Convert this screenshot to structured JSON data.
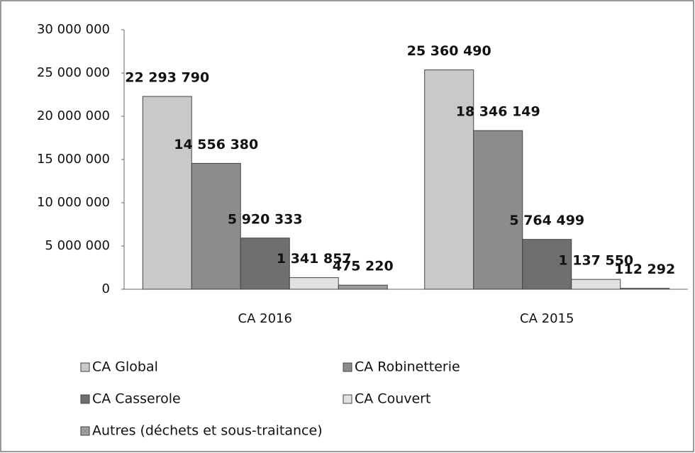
{
  "chart_data": {
    "type": "bar",
    "categories": [
      "CA 2016",
      "CA 2015"
    ],
    "series": [
      {
        "name": "CA Global",
        "color": "#c9c9c9",
        "values": [
          22293790,
          25360490
        ],
        "value_labels": [
          "22 293 790",
          "25 360 490"
        ]
      },
      {
        "name": "CA Robinetterie",
        "color": "#8c8c8c",
        "values": [
          14556380,
          18346149
        ],
        "value_labels": [
          "14 556 380",
          "18 346 149"
        ]
      },
      {
        "name": "CA Casserole",
        "color": "#6f6f6f",
        "values": [
          5920333,
          5764499
        ],
        "value_labels": [
          "5 920 333",
          "5 764 499"
        ]
      },
      {
        "name": "CA Couvert",
        "color": "#e2e2e2",
        "values": [
          1341857,
          1137550
        ],
        "value_labels": [
          "1 341 857",
          "1 137 550"
        ]
      },
      {
        "name": "Autres (déchets et sous-traitance)",
        "color": "#9c9c9c",
        "values": [
          475220,
          112292
        ],
        "value_labels": [
          "475 220",
          "112 292"
        ]
      }
    ],
    "ylim": [
      0,
      30000000
    ],
    "yticks": [
      0,
      {
        "value": 5000000,
        "label": "5 000 000"
      },
      {
        "value": 10000000,
        "label": "10 000 000"
      },
      {
        "value": 15000000,
        "label": "15 000 000"
      },
      {
        "value": 20000000,
        "label": "20 000 000"
      },
      {
        "value": 25000000,
        "label": "25 000 000"
      },
      {
        "value": 30000000,
        "label": "30 000 000"
      }
    ],
    "grid": false
  }
}
